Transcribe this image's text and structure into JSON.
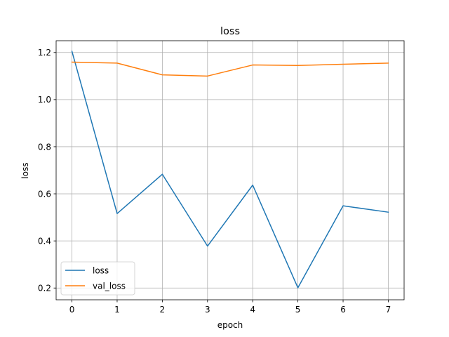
{
  "chart_data": {
    "type": "line",
    "title": "loss",
    "xlabel": "epoch",
    "ylabel": "loss",
    "x": [
      0,
      1,
      2,
      3,
      4,
      5,
      6,
      7
    ],
    "xlim": [
      -0.35,
      7.35
    ],
    "ylim": [
      0.15,
      1.25
    ],
    "xticks": [
      "0",
      "1",
      "2",
      "3",
      "4",
      "5",
      "6",
      "7"
    ],
    "yticks": [
      "0.2",
      "0.4",
      "0.6",
      "0.8",
      "1.0",
      "1.2"
    ],
    "grid": true,
    "legend_position": "lower-left",
    "series": [
      {
        "name": "loss",
        "color": "#1f77b4",
        "values": [
          1.205,
          0.516,
          0.683,
          0.378,
          0.637,
          0.201,
          0.549,
          0.522
        ]
      },
      {
        "name": "val_loss",
        "color": "#ff7f0e",
        "values": [
          1.159,
          1.155,
          1.105,
          1.1,
          1.147,
          1.145,
          1.15,
          1.155
        ]
      }
    ]
  }
}
